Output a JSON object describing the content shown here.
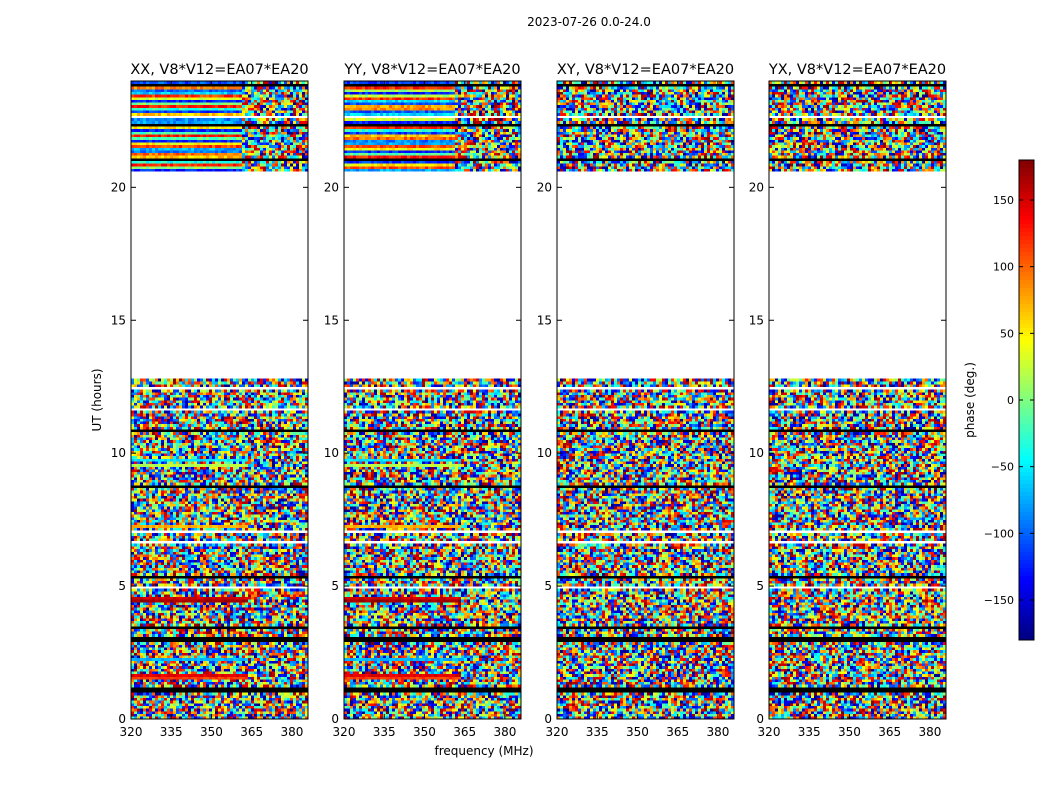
{
  "chart_data": {
    "type": "heatmap",
    "suptitle": "2023-07-26 0.0-24.0",
    "xlabel": "frequency (MHz)",
    "ylabel": "UT (hours)",
    "xlim": [
      320,
      386
    ],
    "ylim": [
      0,
      24
    ],
    "xticks": [
      320,
      335,
      350,
      365,
      380
    ],
    "yticks": [
      0,
      5,
      10,
      15,
      20
    ],
    "xtick_labels": [
      "320",
      "335",
      "350",
      "365",
      "380"
    ],
    "ytick_labels": [
      "0",
      "5",
      "10",
      "15",
      "20"
    ],
    "data_gap_hours": [
      12.8,
      20.6
    ],
    "panels": [
      {
        "title": "XX, V8*V12=EA07*EA20",
        "pol": "XX"
      },
      {
        "title": "YY, V8*V12=EA07*EA20",
        "pol": "YY"
      },
      {
        "title": "XY, V8*V12=EA07*EA20",
        "pol": "XY"
      },
      {
        "title": "YX, V8*V12=EA07*EA20",
        "pol": "YX"
      }
    ],
    "colorbar": {
      "label": "phase (deg.)",
      "range": [
        -180,
        180
      ],
      "ticks": [
        150,
        100,
        50,
        0,
        -50,
        -100,
        -150
      ],
      "tick_labels": [
        "150",
        "100",
        "50",
        "0",
        "−50",
        "−100",
        "−150"
      ],
      "colormap": "jet"
    }
  }
}
